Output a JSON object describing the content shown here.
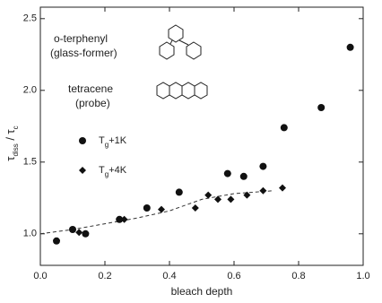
{
  "chart_data": {
    "type": "scatter",
    "xlabel": "bleach depth",
    "ylabel": "τdiss / τc",
    "xlim": [
      0,
      1
    ],
    "ylim": [
      0.78,
      2.58
    ],
    "xticks": [
      {
        "value": 0,
        "label": "0.0"
      },
      {
        "value": 0.2,
        "label": "0.2"
      },
      {
        "value": 0.4,
        "label": "0.4"
      },
      {
        "value": 0.6,
        "label": "0.6"
      },
      {
        "value": 0.8,
        "label": "0.8"
      },
      {
        "value": 1,
        "label": "1.0"
      }
    ],
    "yticks": [
      {
        "value": 1,
        "label": "1.0"
      },
      {
        "value": 1.5,
        "label": "1.5"
      },
      {
        "value": 2,
        "label": "2.0"
      },
      {
        "value": 2.5,
        "label": "2.5"
      }
    ],
    "annotations": [
      "o-terphenyl",
      "(glass-former)",
      "tetracene",
      "(probe)"
    ],
    "series": [
      {
        "name": "Tg+1K",
        "marker": "circle",
        "color": "#111",
        "x": [
          0.05,
          0.1,
          0.14,
          0.245,
          0.33,
          0.43,
          0.58,
          0.63,
          0.69,
          0.755,
          0.87,
          0.96
        ],
        "values": [
          0.95,
          1.03,
          1.0,
          1.1,
          1.18,
          1.29,
          1.42,
          1.4,
          1.47,
          1.74,
          1.88,
          2.3
        ]
      },
      {
        "name": "Tg+4K",
        "marker": "diamond",
        "color": "#111",
        "x": [
          0.12,
          0.26,
          0.375,
          0.48,
          0.52,
          0.55,
          0.59,
          0.64,
          0.69,
          0.75
        ],
        "values": [
          1.01,
          1.1,
          1.17,
          1.18,
          1.27,
          1.24,
          1.24,
          1.27,
          1.3,
          1.32
        ]
      }
    ],
    "fit": {
      "x": [
        0,
        0.1,
        0.2,
        0.3,
        0.4,
        0.5,
        0.6,
        0.72
      ],
      "values": [
        1.0,
        1.03,
        1.07,
        1.11,
        1.16,
        1.24,
        1.28,
        1.3
      ]
    }
  }
}
